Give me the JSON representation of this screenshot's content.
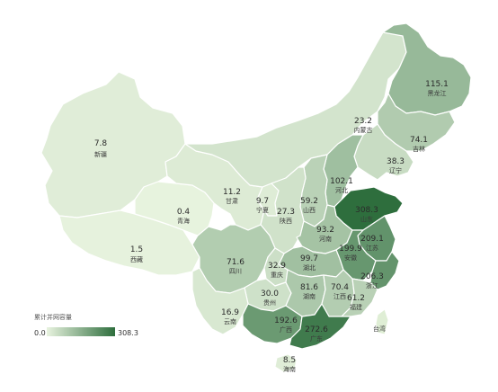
{
  "colors": {
    "min": "#e8f3df",
    "max": "#2e6e3d",
    "border": "#ffffff"
  },
  "legend": {
    "title": "累计并网容量",
    "min": "0.0",
    "max": "308.3"
  },
  "provinces": [
    {
      "id": "xinjiang",
      "name": "新疆",
      "value": "7.8",
      "v": 7.8
    },
    {
      "id": "xizang",
      "name": "西藏",
      "value": "1.5",
      "v": 1.5
    },
    {
      "id": "qinghai",
      "name": "青海",
      "value": "0.4",
      "v": 0.4
    },
    {
      "id": "gansu",
      "name": "甘肃",
      "value": "11.2",
      "v": 11.2
    },
    {
      "id": "neimenggu",
      "name": "内蒙古",
      "value": "23.2",
      "v": 23.2
    },
    {
      "id": "heilongjiang",
      "name": "黑龙江",
      "value": "115.1",
      "v": 115.1
    },
    {
      "id": "jilin",
      "name": "吉林",
      "value": "74.1",
      "v": 74.1
    },
    {
      "id": "liaoning",
      "name": "辽宁",
      "value": "38.3",
      "v": 38.3
    },
    {
      "id": "hebei",
      "name": "河北",
      "value": "102.1",
      "v": 102.1
    },
    {
      "id": "shanxi",
      "name": "山西",
      "value": "59.2",
      "v": 59.2
    },
    {
      "id": "ningxia",
      "name": "宁夏",
      "value": "9.7",
      "v": 9.7
    },
    {
      "id": "shaanxi",
      "name": "陕西",
      "value": "27.3",
      "v": 27.3
    },
    {
      "id": "shandong",
      "name": "山东",
      "value": "308.3",
      "v": 308.3
    },
    {
      "id": "henan",
      "name": "河南",
      "value": "93.2",
      "v": 93.2
    },
    {
      "id": "jiangsu",
      "name": "江苏",
      "value": "209.1",
      "v": 209.1
    },
    {
      "id": "anhui",
      "name": "安徽",
      "value": "199.9",
      "v": 199.9
    },
    {
      "id": "hubei",
      "name": "湖北",
      "value": "99.7",
      "v": 99.7
    },
    {
      "id": "sichuan",
      "name": "四川",
      "value": "71.6",
      "v": 71.6
    },
    {
      "id": "chongqing",
      "name": "重庆",
      "value": "32.9",
      "v": 32.9
    },
    {
      "id": "zhejiang",
      "name": "浙江",
      "value": "206.3",
      "v": 206.3
    },
    {
      "id": "guizhou",
      "name": "贵州",
      "value": "30.0",
      "v": 30.0
    },
    {
      "id": "hunan",
      "name": "湖南",
      "value": "81.6",
      "v": 81.6
    },
    {
      "id": "jiangxi",
      "name": "江西",
      "value": "70.4",
      "v": 70.4
    },
    {
      "id": "fujian",
      "name": "福建",
      "value": "61.2",
      "v": 61.2
    },
    {
      "id": "yunnan",
      "name": "云南",
      "value": "16.9",
      "v": 16.9
    },
    {
      "id": "guangxi",
      "name": "广西",
      "value": "192.6",
      "v": 192.6
    },
    {
      "id": "guangdong",
      "name": "广东",
      "value": "272.6",
      "v": 272.6
    },
    {
      "id": "hainan",
      "name": "海南",
      "value": "8.5",
      "v": 8.5
    },
    {
      "id": "taiwan",
      "name": "台湾",
      "value": "",
      "v": null
    }
  ]
}
